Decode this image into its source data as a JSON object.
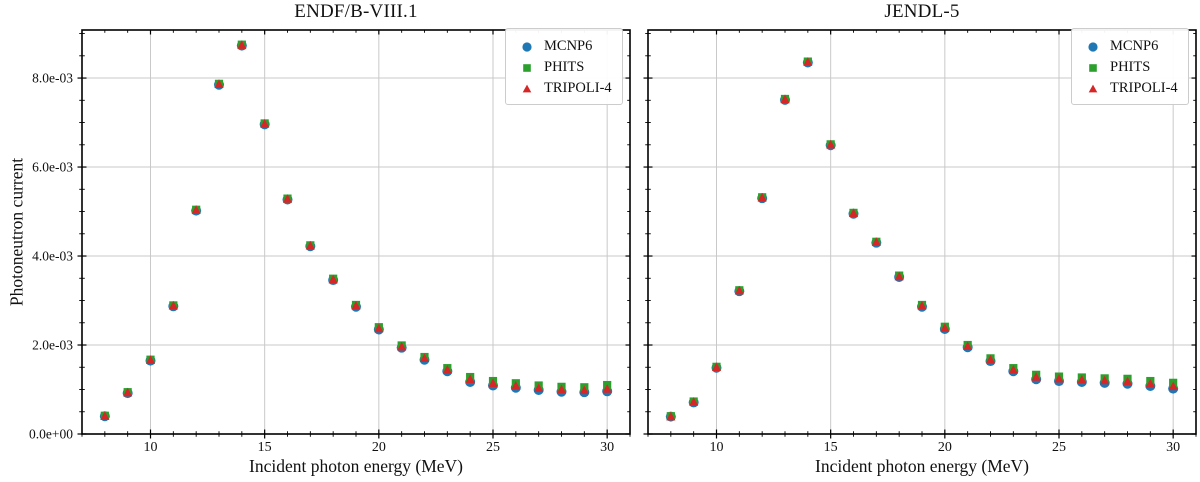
{
  "figure": {
    "ylabel": "Photoneutron current",
    "colors": {
      "mcnp6": "#1f77b4",
      "phits": "#2ca02c",
      "tripoli4": "#d62728",
      "grid": "#c9c9c9",
      "spine": "#000000"
    }
  },
  "chart_data": [
    {
      "type": "scatter",
      "title": "ENDF/B-VIII.1",
      "xlabel": "Incident photon energy (MeV)",
      "ylabel": "Photoneutron current",
      "xlim": [
        7.0,
        31.0
      ],
      "ylim": [
        0,
        0.00908
      ],
      "grid": true,
      "legend_position": "upper right",
      "xticks": [
        10,
        15,
        20,
        25,
        30
      ],
      "xtick_labels": [
        "10",
        "15",
        "20",
        "25",
        "30"
      ],
      "yticks": [
        0,
        0.002,
        0.004,
        0.006,
        0.008
      ],
      "ytick_labels": [
        "0.0e+00",
        "2.0e-03",
        "4.0e-03",
        "6.0e-03",
        "8.0e-03"
      ],
      "x": [
        8,
        9,
        10,
        11,
        12,
        13,
        14,
        15,
        16,
        17,
        18,
        19,
        20,
        21,
        22,
        23,
        24,
        25,
        26,
        27,
        28,
        29,
        30
      ],
      "series": [
        {
          "name": "MCNP6",
          "marker": "circle",
          "color": "#1f77b4",
          "values": [
            0.0004,
            0.00092,
            0.00165,
            0.00287,
            0.00502,
            0.00785,
            0.00873,
            0.00696,
            0.00527,
            0.00422,
            0.00346,
            0.00286,
            0.00235,
            0.00194,
            0.00167,
            0.00141,
            0.00117,
            0.00109,
            0.00104,
            0.00099,
            0.00095,
            0.00094,
            0.00096
          ]
        },
        {
          "name": "PHITS",
          "marker": "square",
          "color": "#2ca02c",
          "values": [
            0.00041,
            0.00094,
            0.00167,
            0.00289,
            0.00504,
            0.00787,
            0.00875,
            0.00698,
            0.00529,
            0.00424,
            0.00349,
            0.0029,
            0.0024,
            0.00199,
            0.00173,
            0.00148,
            0.00128,
            0.00119,
            0.00114,
            0.00109,
            0.00106,
            0.00105,
            0.0011
          ]
        },
        {
          "name": "TRIPOLI-4",
          "marker": "triangle",
          "color": "#d62728",
          "values": [
            0.0004,
            0.00093,
            0.00166,
            0.00288,
            0.00503,
            0.00786,
            0.00874,
            0.00697,
            0.00528,
            0.00423,
            0.00347,
            0.00288,
            0.00237,
            0.00196,
            0.0017,
            0.00144,
            0.00123,
            0.00114,
            0.00108,
            0.00103,
            0.001,
            0.00098,
            0.00101
          ]
        }
      ]
    },
    {
      "type": "scatter",
      "title": "JENDL-5",
      "xlabel": "Incident photon energy (MeV)",
      "ylabel": "",
      "xlim": [
        7.0,
        31.0
      ],
      "ylim": [
        0,
        0.00908
      ],
      "grid": true,
      "legend_position": "upper right",
      "xticks": [
        10,
        15,
        20,
        25,
        30
      ],
      "xtick_labels": [
        "10",
        "15",
        "20",
        "25",
        "30"
      ],
      "yticks": [
        0,
        0.002,
        0.004,
        0.006,
        0.008
      ],
      "ytick_labels": [],
      "x": [
        8,
        9,
        10,
        11,
        12,
        13,
        14,
        15,
        16,
        17,
        18,
        19,
        20,
        21,
        22,
        23,
        24,
        25,
        26,
        27,
        28,
        29,
        30
      ],
      "series": [
        {
          "name": "MCNP6",
          "marker": "circle",
          "color": "#1f77b4",
          "values": [
            0.00039,
            0.00071,
            0.00149,
            0.00321,
            0.0053,
            0.00751,
            0.00835,
            0.00649,
            0.00495,
            0.0043,
            0.00353,
            0.00286,
            0.00236,
            0.00195,
            0.00164,
            0.00141,
            0.00123,
            0.00119,
            0.00117,
            0.00115,
            0.00113,
            0.00108,
            0.00102
          ]
        },
        {
          "name": "PHITS",
          "marker": "square",
          "color": "#2ca02c",
          "values": [
            0.0004,
            0.00073,
            0.00151,
            0.00323,
            0.00532,
            0.00753,
            0.00837,
            0.00651,
            0.00497,
            0.00432,
            0.00356,
            0.0029,
            0.00241,
            0.002,
            0.0017,
            0.00148,
            0.00133,
            0.00129,
            0.00127,
            0.00125,
            0.00124,
            0.00119,
            0.00115
          ]
        },
        {
          "name": "TRIPOLI-4",
          "marker": "triangle",
          "color": "#d62728",
          "values": [
            0.00039,
            0.00072,
            0.0015,
            0.00322,
            0.00531,
            0.00752,
            0.00836,
            0.0065,
            0.00496,
            0.00431,
            0.00354,
            0.00288,
            0.00238,
            0.00197,
            0.00167,
            0.00144,
            0.00128,
            0.00124,
            0.00122,
            0.0012,
            0.00118,
            0.00113,
            0.00107
          ]
        }
      ]
    }
  ]
}
